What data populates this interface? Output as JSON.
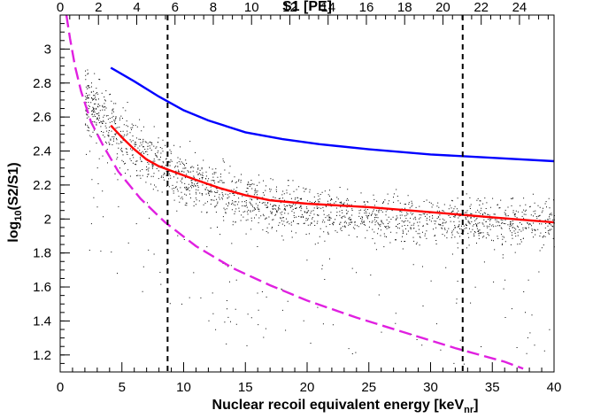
{
  "chart_data": {
    "type": "scatter",
    "xlabel": "Nuclear recoil equivalent energy [keV",
    "xlabel_sub": "nr",
    "xlabel_close": "]",
    "ylabel": "log",
    "ylabel_sub": "10",
    "ylabel_rest": "(S2/S1)",
    "top_axis_label": "S1 [PE]",
    "xlim": [
      0,
      40
    ],
    "ylim": [
      1.1,
      3.2
    ],
    "x_ticks": [
      0,
      5,
      10,
      15,
      20,
      25,
      30,
      35,
      40
    ],
    "y_ticks": [
      1.2,
      1.4,
      1.6,
      1.8,
      2.0,
      2.2,
      2.4,
      2.6,
      2.8,
      3.0
    ],
    "y_tick_labels": [
      "1.2",
      "1.4",
      "1.6",
      "1.8",
      "2",
      "2.2",
      "2.4",
      "2.6",
      "2.8",
      "3"
    ],
    "top_ticks": [
      0,
      2,
      4,
      6,
      8,
      10,
      12,
      14,
      16,
      18,
      20,
      22,
      24
    ],
    "top_axis_keV_per_PE": 1.55,
    "grid": false,
    "series": [
      {
        "style": "solid",
        "color": "#0000ff",
        "points": [
          [
            4.1,
            2.89
          ],
          [
            6,
            2.81
          ],
          [
            8,
            2.72
          ],
          [
            10,
            2.64
          ],
          [
            12,
            2.58
          ],
          [
            15,
            2.51
          ],
          [
            18,
            2.47
          ],
          [
            21,
            2.44
          ],
          [
            25,
            2.41
          ],
          [
            30,
            2.38
          ],
          [
            35,
            2.36
          ],
          [
            40,
            2.34
          ]
        ]
      },
      {
        "style": "solid",
        "color": "#ff0000",
        "points": [
          [
            4.1,
            2.55
          ],
          [
            5,
            2.48
          ],
          [
            6,
            2.41
          ],
          [
            7,
            2.35
          ],
          [
            8,
            2.31
          ],
          [
            9.5,
            2.27
          ],
          [
            11,
            2.23
          ],
          [
            13,
            2.18
          ],
          [
            15,
            2.14
          ],
          [
            17,
            2.11
          ],
          [
            20,
            2.09
          ],
          [
            25,
            2.07
          ],
          [
            30,
            2.04
          ],
          [
            35,
            2.01
          ],
          [
            40,
            1.98
          ]
        ]
      },
      {
        "style": "dashed",
        "color": "#e020e0",
        "points": [
          [
            0.5,
            3.2
          ],
          [
            0.8,
            3.06
          ],
          [
            1.2,
            2.9
          ],
          [
            1.7,
            2.75
          ],
          [
            2.5,
            2.57
          ],
          [
            3.5,
            2.43
          ],
          [
            4.7,
            2.28
          ],
          [
            6.5,
            2.12
          ],
          [
            8.5,
            1.98
          ],
          [
            11,
            1.84
          ],
          [
            14,
            1.71
          ],
          [
            17,
            1.61
          ],
          [
            20,
            1.52
          ],
          [
            24,
            1.42
          ],
          [
            28,
            1.33
          ],
          [
            32,
            1.24
          ],
          [
            36,
            1.16
          ],
          [
            37.5,
            1.12
          ]
        ]
      },
      {
        "style": "vertical-dashed",
        "color": "#000000",
        "x": 8.7
      },
      {
        "style": "vertical-dashed",
        "color": "#000000",
        "x": 32.6
      }
    ]
  }
}
